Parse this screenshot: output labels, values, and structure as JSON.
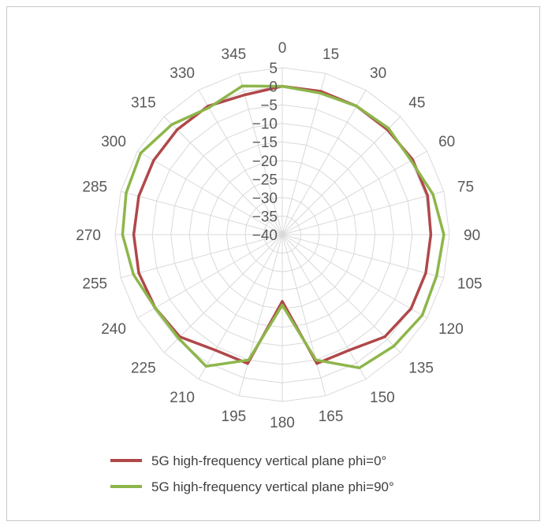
{
  "chart_data": {
    "type": "radar",
    "angle_labels": [
      "0",
      "15",
      "30",
      "45",
      "60",
      "75",
      "90",
      "105",
      "120",
      "135",
      "150",
      "165",
      "180",
      "195",
      "210",
      "225",
      "240",
      "255",
      "270",
      "285",
      "300",
      "315",
      "330",
      "345"
    ],
    "angles": [
      0,
      15,
      30,
      45,
      60,
      75,
      90,
      105,
      120,
      135,
      150,
      165,
      180,
      195,
      210,
      225,
      240,
      255,
      270,
      285,
      300,
      315,
      330,
      345
    ],
    "radial_tick_labels": [
      "5",
      "0",
      "−5",
      "−10",
      "−15",
      "−20",
      "−25",
      "−30",
      "−35",
      "−40"
    ],
    "radial_ticks": [
      5,
      0,
      -5,
      -10,
      -15,
      -20,
      -25,
      -30,
      -35,
      -40
    ],
    "rlim": [
      -40,
      5
    ],
    "grid": true,
    "legend_position": "bottom",
    "series": [
      {
        "name": "5G high-frequency vertical plane phi=0°",
        "color": "#b0484a",
        "values": [
          0,
          0,
          0,
          0,
          0.5,
          0.5,
          0,
          0,
          0,
          -1,
          -4,
          -4,
          -22,
          -4,
          -4,
          -1,
          -0.5,
          0,
          0,
          0,
          0,
          0,
          0,
          -1
        ]
      },
      {
        "name": "5G high-frequency vertical plane phi=90°",
        "color": "#8db64a",
        "values": [
          0,
          -0.5,
          0,
          0.5,
          0,
          2,
          3.5,
          3,
          3.5,
          2.5,
          1.5,
          -5,
          -21,
          -5,
          1,
          -0.5,
          -0.5,
          1.5,
          3,
          3.5,
          4,
          2,
          -0.5,
          1.5
        ]
      }
    ]
  }
}
